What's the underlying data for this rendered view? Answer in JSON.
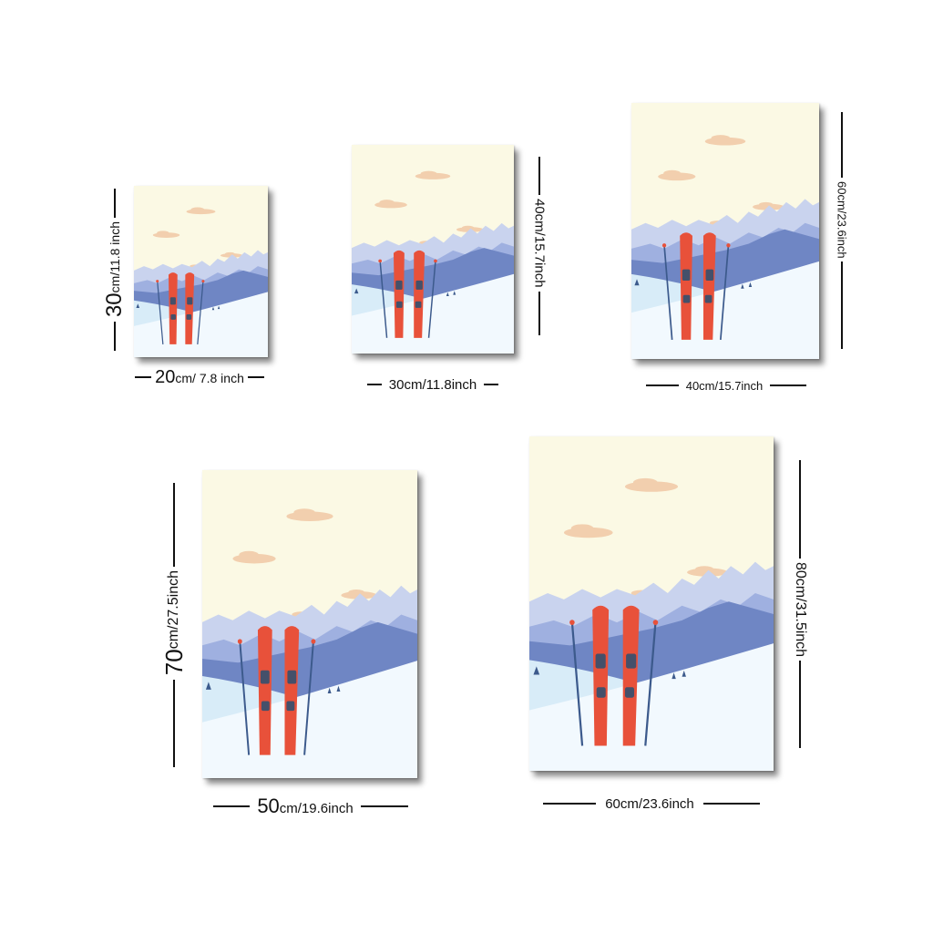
{
  "posters": [
    {
      "id": "p1",
      "width_label": {
        "major": "20",
        "minor": "cm/ 7.8 inch"
      },
      "height_label": {
        "major": "30",
        "minor": "cm/11.8 inch"
      }
    },
    {
      "id": "p2",
      "width_label": {
        "major": "",
        "minor": "30cm/11.8inch"
      },
      "height_label": {
        "major": "",
        "minor": "40cm/15.7inch"
      }
    },
    {
      "id": "p3",
      "width_label": {
        "major": "",
        "minor": "40cm/15.7inch"
      },
      "height_label": {
        "major": "",
        "minor": "60cm/23.6inch"
      }
    },
    {
      "id": "p4",
      "width_label": {
        "major": "50",
        "minor": "cm/19.6inch"
      },
      "height_label": {
        "major": "70",
        "minor": "cm/27.5inch"
      }
    },
    {
      "id": "p5",
      "width_label": {
        "major": "",
        "minor": "60cm/23.6inch"
      },
      "height_label": {
        "major": "",
        "minor": "80cm/31.5inch"
      }
    }
  ],
  "artwork": {
    "subject": "ski-mountain-illustration",
    "colors": {
      "sky": "#fbf9e4",
      "cloud": "#f2cfae",
      "mountain_far": "#c9d3ee",
      "mountain_mid": "#9fb0e0",
      "mountain_near": "#6f86c4",
      "snow": "#eaf4fb",
      "snow_light": "#f8fcff",
      "ski": "#e8513a",
      "pole": "#3c5a8c"
    }
  }
}
